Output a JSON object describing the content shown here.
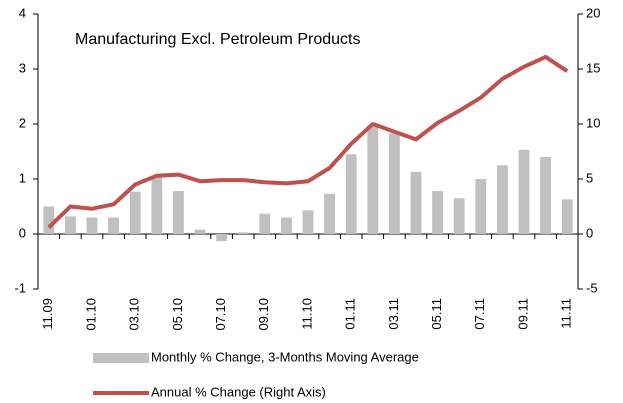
{
  "chart_data": {
    "type": "combo",
    "title": "Manufacturing Excl. Petroleum Products",
    "categories": [
      "11.09",
      null,
      "01.10",
      null,
      "03.10",
      null,
      "05.10",
      null,
      "07.10",
      null,
      "09.10",
      null,
      "11.10",
      null,
      "01.11",
      null,
      "03.11",
      null,
      "05.11",
      null,
      "07.11",
      null,
      "09.11",
      null,
      "11.11"
    ],
    "series": [
      {
        "name": "Monthly % Change, 3-Months Moving Average",
        "type": "bar",
        "color": "#c0c0c0",
        "values": [
          0.5,
          0.32,
          0.3,
          0.3,
          0.77,
          1.03,
          0.78,
          0.08,
          -0.13,
          0.03,
          0.37,
          0.3,
          0.43,
          0.73,
          1.45,
          1.95,
          1.83,
          1.13,
          0.78,
          0.65,
          1.0,
          1.25,
          1.53,
          1.4,
          0.63
        ]
      },
      {
        "name": "Annual % Change (Right Axis)",
        "type": "line",
        "axis": "y2",
        "color": "#c0504d",
        "values": [
          0.6,
          2.5,
          2.3,
          2.7,
          4.5,
          5.3,
          5.4,
          4.8,
          4.9,
          4.9,
          4.7,
          4.6,
          4.8,
          6.0,
          8.2,
          10.0,
          9.3,
          8.6,
          10.1,
          11.2,
          12.4,
          14.1,
          15.2,
          16.1,
          14.8
        ]
      }
    ],
    "ylim": [
      -1,
      4
    ],
    "yticks": [
      -1,
      0,
      1,
      2,
      3,
      4
    ],
    "y2lim": [
      -5,
      20
    ],
    "y2ticks": [
      -5,
      0,
      5,
      10,
      15,
      20
    ]
  }
}
